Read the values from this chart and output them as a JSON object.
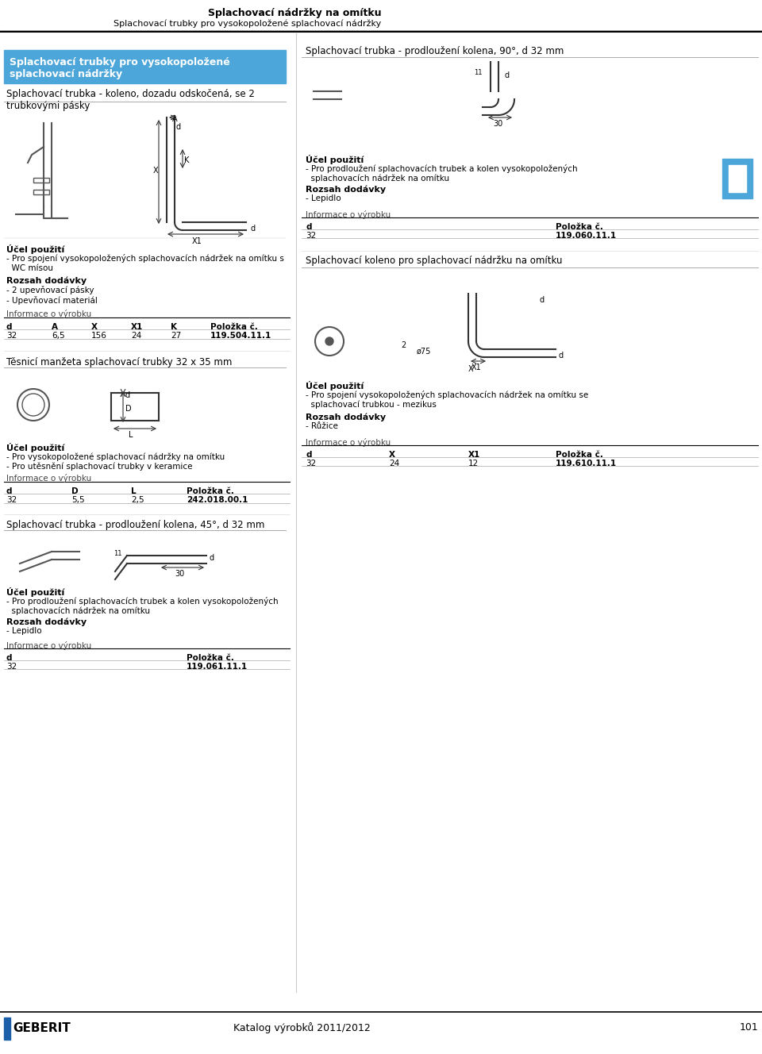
{
  "page_title_bold": "Splachovací nádržky na omítku",
  "page_title_sub": "Splachovací trubky pro vysokopoložené splachovací nádržky",
  "page_number": "101",
  "catalog": "Katalog výrobků 2011/2012",
  "bg_color": "#ffffff",
  "header_line_color": "#000000",
  "blue_box_color": "#4da6d9",
  "blue_box_text": "Splachovací trubky pro vysokopoložené\nsplachovací nádržky",
  "section1_title": "Splachovací trubka - koleno, dozadu odskočená, se 2\ntrubkovými pásky",
  "section1_ucel_bold": "Účel použití",
  "section1_ucel": "- Pro spojení vysokopoložených splachovacích nádržek na omítku s\n  WC mísou",
  "section1_rozsah_bold": "Rozsah dodávky",
  "section1_rozsah": "- 2 upevňovací pásky\n- Upevňovací materiál",
  "section1_info": "Informace o výrobku",
  "section1_cols": [
    "d",
    "A",
    "X",
    "X1",
    "K",
    "Položka č."
  ],
  "section1_vals": [
    "32",
    "6,5",
    "156",
    "24",
    "27",
    "119.504.11.1"
  ],
  "section2_title": "Těsnicí manžeta splachovací trubky 32 x 35 mm",
  "section2_ucel_bold": "Účel použití",
  "section2_ucel": "- Pro vysokopoložené splachovací nádržky na omítku\n- Pro utěsnění splachovací trubky v keramice",
  "section2_info": "Informace o výrobku",
  "section2_cols": [
    "d",
    "D",
    "L",
    "Položka č."
  ],
  "section2_vals": [
    "32",
    "5,5",
    "2,5",
    "242.018.00.1"
  ],
  "section3_title": "Splachovací trubka - prodloužení kolena, 45°, d 32 mm",
  "section3_ucel_bold": "Účel použití",
  "section3_ucel": "- Pro prodloužení splachovacích trubek a kolen vysokopoložených\n  splachovacích nádržek na omítku",
  "section3_rozsah_bold": "Rozsah dodávky",
  "section3_rozsah": "- Lepidlo",
  "section3_info": "Informace o výrobku",
  "section3_cols": [
    "d",
    "Položka č."
  ],
  "section3_vals": [
    "32",
    "119.061.11.1"
  ],
  "section4_title": "Splachovací trubka - prodloužení kolena, 90°, d 32 mm",
  "section4_ucel_bold": "Účel použití",
  "section4_ucel": "- Pro prodloužení splachovacích trubek a kolen vysokopoložených\n  splachovacích nádržek na omítku",
  "section4_rozsah_bold": "Rozsah dodávky",
  "section4_rozsah": "- Lepidlo",
  "section4_info": "Informace o výrobku",
  "section4_cols": [
    "d",
    "Položka č."
  ],
  "section4_vals": [
    "32",
    "119.060.11.1"
  ],
  "section5_title": "Splachovací koleno pro splachovací nádržku na omítku",
  "section5_ucel_bold": "Účel použití",
  "section5_ucel": "- Pro spojení vysokopoložených splachovacích nádržek na omítku se\n  splachovací trubkou - mezikus",
  "section5_rozsah_bold": "Rozsah dodávky",
  "section5_rozsah": "- Růžice",
  "section5_info": "Informace o výrobku",
  "section5_cols": [
    "d",
    "X",
    "X1",
    "Položka č."
  ],
  "section5_vals": [
    "32",
    "24",
    "12",
    "119.610.11.1"
  ],
  "text_color": "#000000",
  "divider_color": "#cccccc",
  "table_header_color": "#000000",
  "geberit_blue": "#1a5fa8"
}
